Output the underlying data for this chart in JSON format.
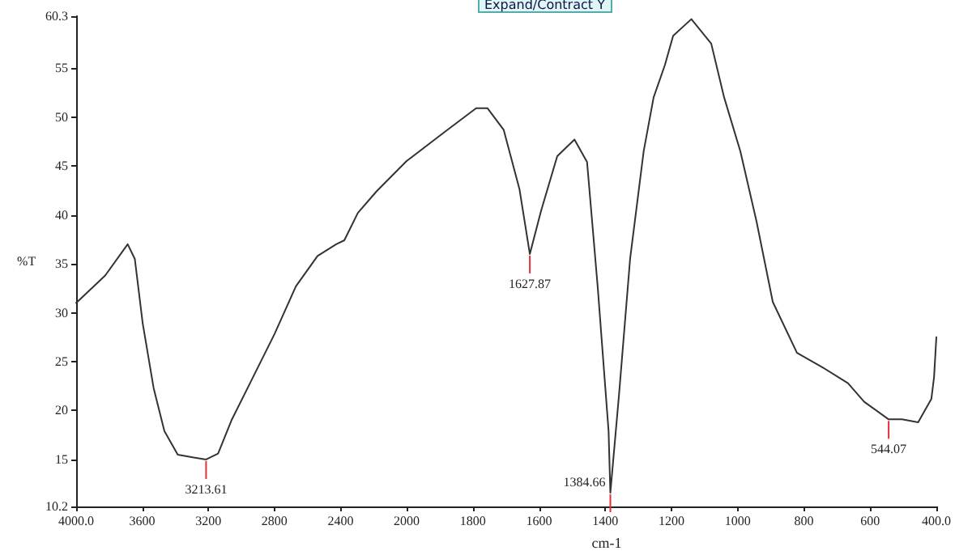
{
  "chart_data": [
    {
      "type": "line",
      "ylabel": "%T",
      "x": [
        4000,
        3824,
        3688,
        3645,
        3597,
        3531,
        3466,
        3385,
        3288,
        3213.61,
        3141,
        3060,
        2930,
        2800,
        2670,
        2539,
        2426,
        2377,
        2295,
        2182,
        2000
      ],
      "series": [
        {
          "color": "#333333",
          "values": [
            31.0,
            33.8,
            37.0,
            35.5,
            28.9,
            22.3,
            17.9,
            15.5,
            15.2,
            15.0,
            15.6,
            19.0,
            23.4,
            27.8,
            32.7,
            35.8,
            37.0,
            37.4,
            40.2,
            42.4,
            45.5
          ]
        }
      ],
      "xlim": [
        4000,
        2000
      ],
      "xticks": [
        {
          "value": 4000,
          "label": "4000.0"
        },
        3600,
        3200,
        2800,
        2400,
        2000
      ],
      "ylim": [
        10.2,
        60.3
      ],
      "yticks": [
        10.2,
        15,
        20,
        25,
        30,
        35,
        40,
        45,
        50,
        55,
        60.3
      ],
      "grid": false,
      "marker": "none",
      "line_style": "solid",
      "annotations": [
        {
          "text": "3213.61",
          "x": 3213.61,
          "y": 15.0
        }
      ]
    },
    {
      "type": "line",
      "xlabel": "cm-1",
      "x": [
        2000,
        1888,
        1790,
        1756,
        1707,
        1659,
        1627.87,
        1594,
        1545,
        1493,
        1455,
        1423,
        1390,
        1384.66,
        1358,
        1325,
        1284,
        1254,
        1220,
        1195,
        1140,
        1080,
        1041,
        992,
        943,
        894,
        821,
        748,
        667,
        618,
        544.07,
        504,
        455,
        415,
        407,
        400
      ],
      "series": [
        {
          "color": "#333333",
          "values": [
            45.5,
            48.4,
            50.9,
            50.9,
            48.7,
            42.6,
            36.0,
            40.4,
            46.0,
            47.7,
            45.4,
            32.7,
            17.9,
            11.6,
            21.8,
            35.5,
            46.5,
            52.0,
            55.3,
            58.3,
            60.0,
            57.5,
            52.0,
            46.5,
            39.3,
            31.1,
            25.9,
            24.5,
            22.8,
            20.9,
            19.1,
            19.1,
            18.8,
            21.2,
            23.4,
            27.5
          ]
        }
      ],
      "xlim": [
        2000,
        400
      ],
      "xticks": [
        1800,
        1600,
        1400,
        1200,
        1000,
        800,
        600,
        {
          "value": 400,
          "label": "400.0"
        }
      ],
      "ylim": [
        10.2,
        60.3
      ],
      "tick_labels": "x",
      "grid": false,
      "marker": "none",
      "line_style": "solid",
      "annotations": [
        "Expand/Contract Y",
        {
          "text": "1627.87",
          "x": 1627.87,
          "y": 36.0
        },
        {
          "text": "1384.66",
          "x": 1384.66,
          "y": 11.6
        },
        {
          "text": "544.07",
          "x": 544.07,
          "y": 19.1
        }
      ]
    }
  ]
}
